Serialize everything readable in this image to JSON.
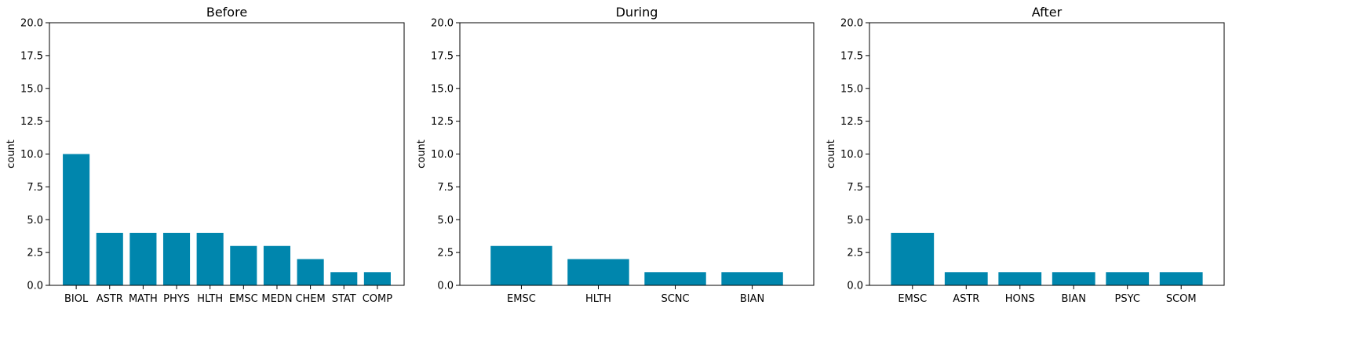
{
  "figure": {
    "bar_color": "#0086ad",
    "axis_color": "#000000"
  },
  "chart_data": [
    {
      "type": "bar",
      "title": "Before",
      "xlabel": "",
      "ylabel": "count",
      "ylim": [
        0,
        20
      ],
      "yticks": [
        "0.0",
        "2.5",
        "5.0",
        "7.5",
        "10.0",
        "12.5",
        "15.0",
        "17.5",
        "20.0"
      ],
      "categories": [
        "BIOL",
        "ASTR",
        "MATH",
        "PHYS",
        "HLTH",
        "EMSC",
        "MEDN",
        "CHEM",
        "STAT",
        "COMP"
      ],
      "values": [
        10,
        4,
        4,
        4,
        4,
        3,
        3,
        2,
        1,
        1
      ],
      "grid": false
    },
    {
      "type": "bar",
      "title": "During",
      "xlabel": "",
      "ylabel": "count",
      "ylim": [
        0,
        20
      ],
      "yticks": [
        "0.0",
        "2.5",
        "5.0",
        "7.5",
        "10.0",
        "12.5",
        "15.0",
        "17.5",
        "20.0"
      ],
      "categories": [
        "EMSC",
        "HLTH",
        "SCNC",
        "BIAN"
      ],
      "values": [
        3,
        2,
        1,
        1
      ],
      "grid": false
    },
    {
      "type": "bar",
      "title": "After",
      "xlabel": "",
      "ylabel": "count",
      "ylim": [
        0,
        20
      ],
      "yticks": [
        "0.0",
        "2.5",
        "5.0",
        "7.5",
        "10.0",
        "12.5",
        "15.0",
        "17.5",
        "20.0"
      ],
      "categories": [
        "EMSC",
        "ASTR",
        "HONS",
        "BIAN",
        "PSYC",
        "SCOM"
      ],
      "values": [
        4,
        1,
        1,
        1,
        1,
        1
      ],
      "grid": false
    }
  ]
}
